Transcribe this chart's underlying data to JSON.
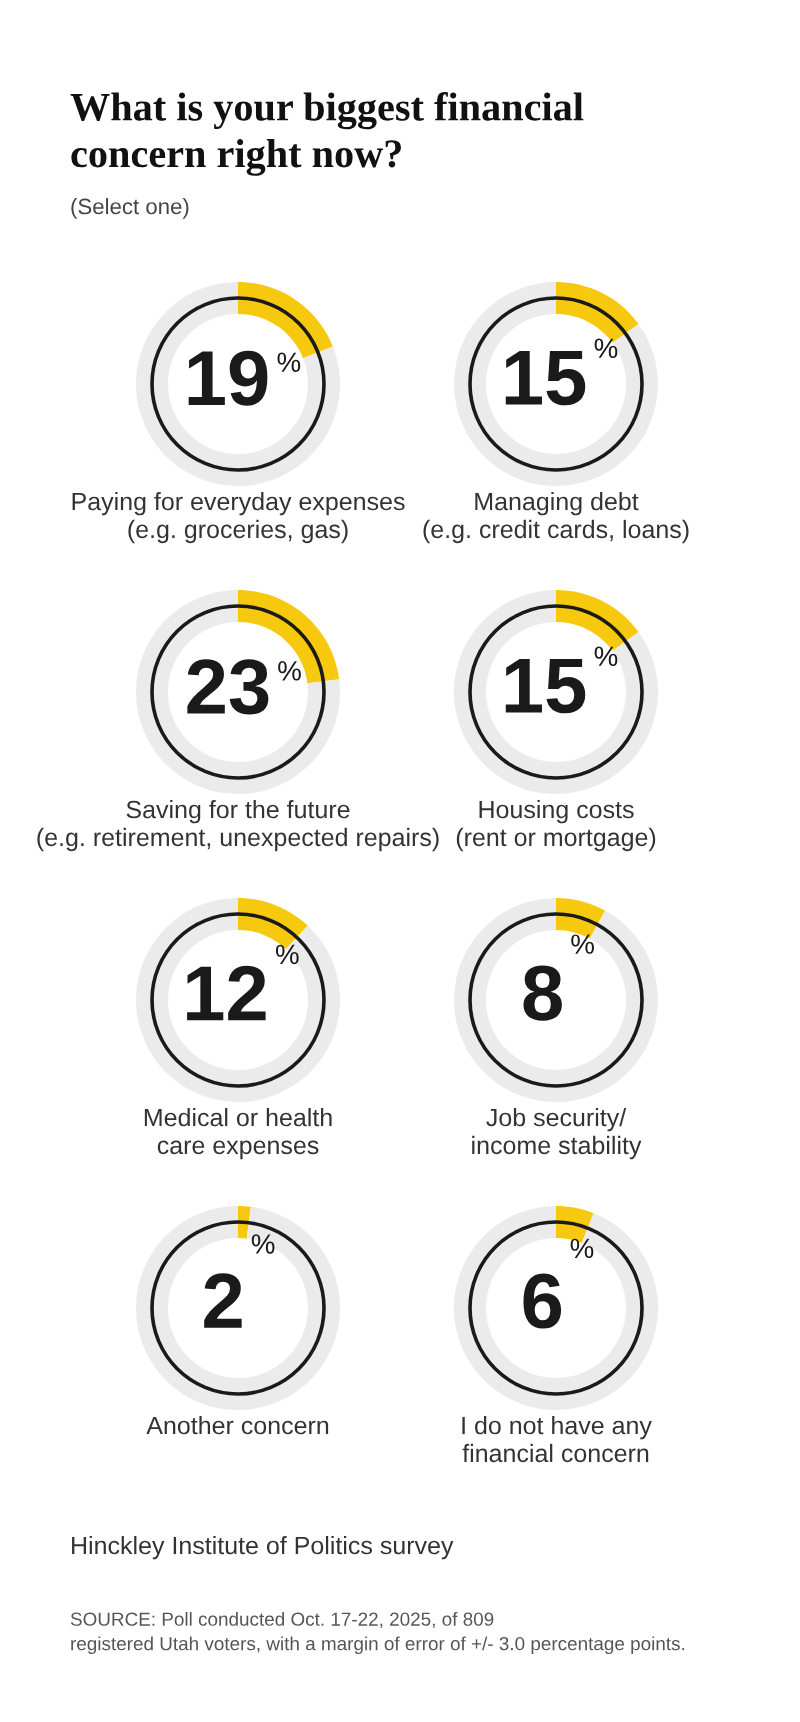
{
  "chart_data": [
    {
      "type": "other",
      "title": "What is your biggest financial\nconcern right now?",
      "subtitle": "(Select one)"
    },
    {
      "type": "donut",
      "title": "Paying for everyday expenses\n(e.g. groceries, gas)",
      "categories": [
        null,
        null
      ],
      "values": [
        19,
        81
      ],
      "colors": [
        "#f6c90e",
        "#ebebeb"
      ],
      "value_labels": [
        "19$^{%}$",
        null
      ]
    },
    {
      "type": "donut",
      "title": "Managing debt\n(e.g. credit cards, loans)",
      "categories": [
        null,
        null
      ],
      "values": [
        15,
        85
      ],
      "colors": [
        "#f6c90e",
        "#ebebeb"
      ],
      "value_labels": [
        "15$^{%}$",
        null
      ]
    },
    {
      "type": "donut",
      "title": "Saving for the future\n(e.g. retirement, unexpected repairs)",
      "categories": [
        null,
        null
      ],
      "values": [
        23,
        77
      ],
      "colors": [
        "#f6c90e",
        "#ebebeb"
      ],
      "value_labels": [
        "23$^{%}$",
        null
      ]
    },
    {
      "type": "donut",
      "title": "Housing costs\n(rent or mortgage)",
      "categories": [
        null,
        null
      ],
      "values": [
        15,
        85
      ],
      "colors": [
        "#f6c90e",
        "#ebebeb"
      ],
      "value_labels": [
        "15$^{%}$",
        null
      ]
    },
    {
      "type": "donut",
      "title": "Medical or health\ncare expenses",
      "categories": [
        null,
        null
      ],
      "values": [
        12,
        88
      ],
      "colors": [
        "#f6c90e",
        "#ebebeb"
      ],
      "value_labels": [
        "12$^{%}$",
        null
      ]
    },
    {
      "type": "donut",
      "title": "Job security/\nincome stability",
      "categories": [
        null,
        null
      ],
      "values": [
        8,
        92
      ],
      "colors": [
        "#f6c90e",
        "#ebebeb"
      ],
      "value_labels": [
        "8$^{%}$",
        null
      ]
    },
    {
      "type": "donut",
      "title": "Another concern",
      "categories": [
        null,
        null
      ],
      "values": [
        2,
        98
      ],
      "colors": [
        "#f6c90e",
        "#ebebeb"
      ],
      "value_labels": [
        "2$^{%}$",
        null
      ]
    },
    {
      "type": "donut",
      "title": "I do not have any\nfinancial concern",
      "categories": [
        null,
        null
      ],
      "values": [
        6,
        94
      ],
      "colors": [
        "#f6c90e",
        "#ebebeb"
      ],
      "value_labels": [
        "6$^{%}$",
        null
      ]
    },
    {
      "type": "other",
      "annotations": [
        "Hinckley Institute of Politics survey",
        "SOURCE: Poll conducted Oct. 17-22, 2025, of 809\nregistered Utah voters, with a margin of error of +/- 3.0 percentage points."
      ]
    }
  ]
}
